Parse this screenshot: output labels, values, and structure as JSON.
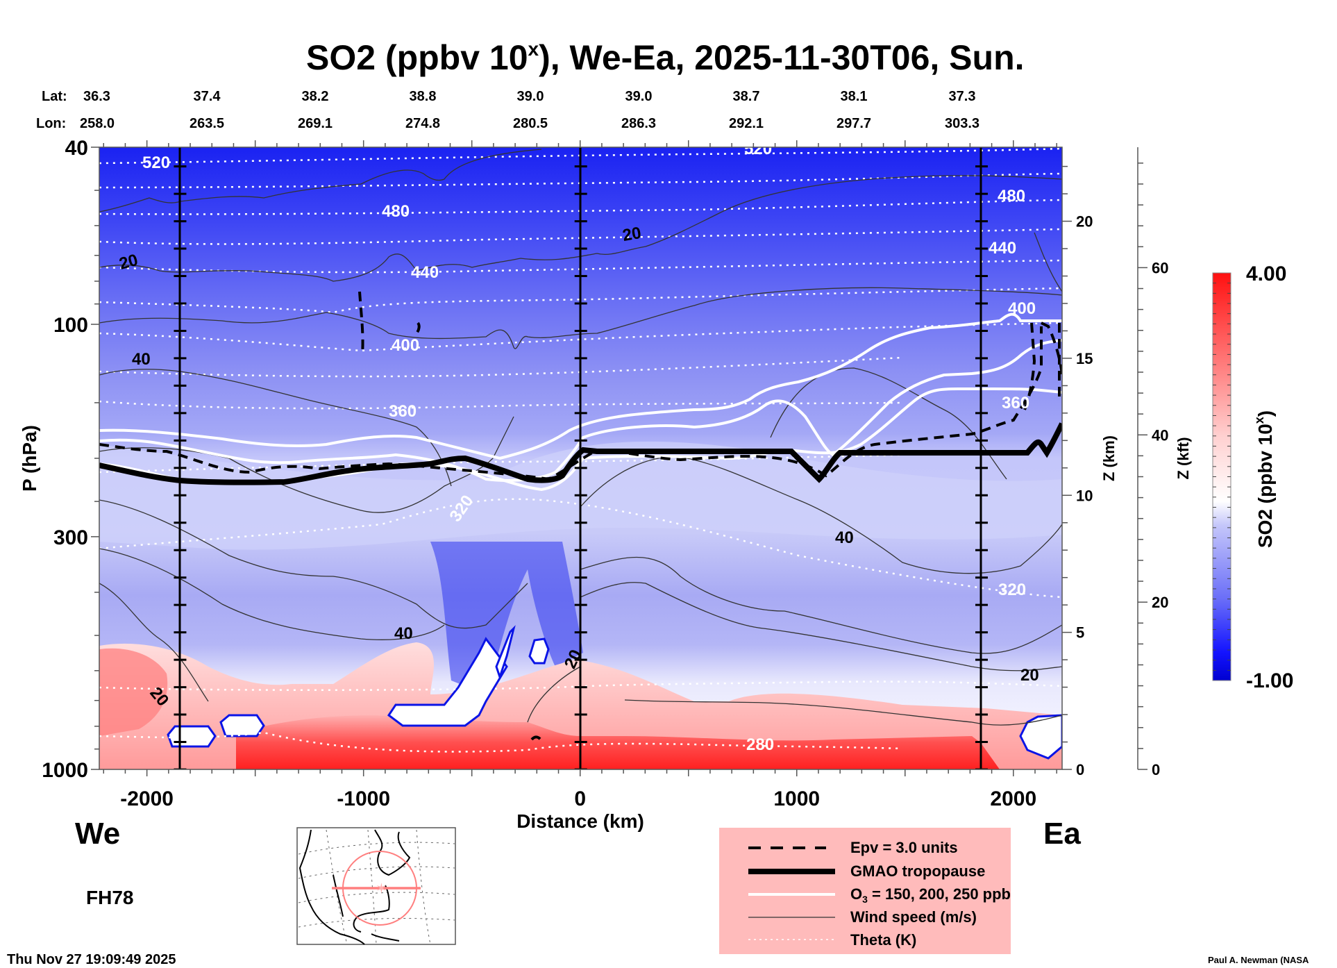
{
  "chart_data": {
    "type": "heatmap",
    "title": "SO2 (ppbv 10",
    "title_sup": "x",
    "title_rest": "), We-Ea, 2025-11-30T06, Sun.",
    "xlabel": "Distance (km)",
    "ylabel": "P (hPa)",
    "y2label": "Z (km)",
    "y3label": "Z (kft)",
    "xlim": [
      -2220,
      2225
    ],
    "ylim_hpa": [
      1000,
      40
    ],
    "x_ticks": [
      -2000,
      -1000,
      0,
      1000,
      2000
    ],
    "x_tick_labels": [
      "-2000",
      "-1000",
      "0",
      "1000",
      "2000"
    ],
    "y_ticks": [
      40,
      100,
      300,
      1000
    ],
    "y_tick_labels": [
      "40",
      "100",
      "300",
      "1000"
    ],
    "z_km_ticks": [
      0,
      5,
      10,
      15,
      20
    ],
    "z_km_tick_labels": [
      "0",
      "5",
      "10",
      "15",
      "20"
    ],
    "z_kft_ticks": [
      0,
      20,
      40,
      60
    ],
    "z_kft_tick_labels": [
      "0",
      "20",
      "40",
      "60"
    ],
    "lat_label": "Lat:",
    "lon_label": "Lon:",
    "lat": [
      "36.3",
      "37.4",
      "38.2",
      "38.8",
      "39.0",
      "39.0",
      "38.7",
      "38.1",
      "37.3"
    ],
    "lon": [
      "258.0",
      "263.5",
      "269.1",
      "274.8",
      "280.5",
      "286.3",
      "292.1",
      "297.7",
      "303.3"
    ],
    "vertical_markers_km": [
      -1850,
      0,
      1850
    ],
    "colorbar": {
      "label": "SO2 (ppbv 10",
      "label_sup": "x",
      "label_end": ")",
      "min": -1.0,
      "max": 4.0,
      "min_label": "-1.00",
      "max_label": "4.00",
      "levels": 40,
      "low_color": "#0000cc",
      "mid_color": "#ffffff",
      "high_color": "#ff0000"
    },
    "theta_contours_K": [
      {
        "value": 520,
        "label": "520"
      },
      {
        "value": 480,
        "label": "480"
      },
      {
        "value": 440,
        "label": "440"
      },
      {
        "value": 400,
        "label": "400"
      },
      {
        "value": 360,
        "label": "360"
      },
      {
        "value": 320,
        "label": "320"
      },
      {
        "value": 280,
        "label": "280"
      }
    ],
    "wind_contours_ms": [
      {
        "value": 20,
        "label": "20"
      },
      {
        "value": 40,
        "label": "40"
      }
    ],
    "fill_regions": [
      {
        "name": "stratosphere-low",
        "so2": -0.9
      },
      {
        "name": "upper-trop",
        "so2": -0.4
      },
      {
        "name": "mid-trop",
        "so2": -0.2
      },
      {
        "name": "boundary-layer",
        "so2": 3.3
      }
    ]
  },
  "legend": {
    "items": [
      {
        "style": "dashed",
        "label": "Epv = 3.0 units"
      },
      {
        "style": "thick",
        "label": "GMAO tropopause"
      },
      {
        "style": "white",
        "label": "O",
        "sub": "3",
        "label_rest": " = 150, 200, 250 ppb"
      },
      {
        "style": "thin",
        "label": "Wind speed (m/s)"
      },
      {
        "style": "dotted",
        "label": "Theta (K)"
      }
    ],
    "background": "#ffbbbb"
  },
  "annotations": {
    "west": "We",
    "east": "Ea",
    "forecast_hour": "FH78",
    "timestamp": "Thu Nov 27 19:09:49 2025",
    "credit": "Paul A. Newman (NASA"
  },
  "map_inset": {
    "region": "North America",
    "track_color": "#ff7f7f"
  }
}
